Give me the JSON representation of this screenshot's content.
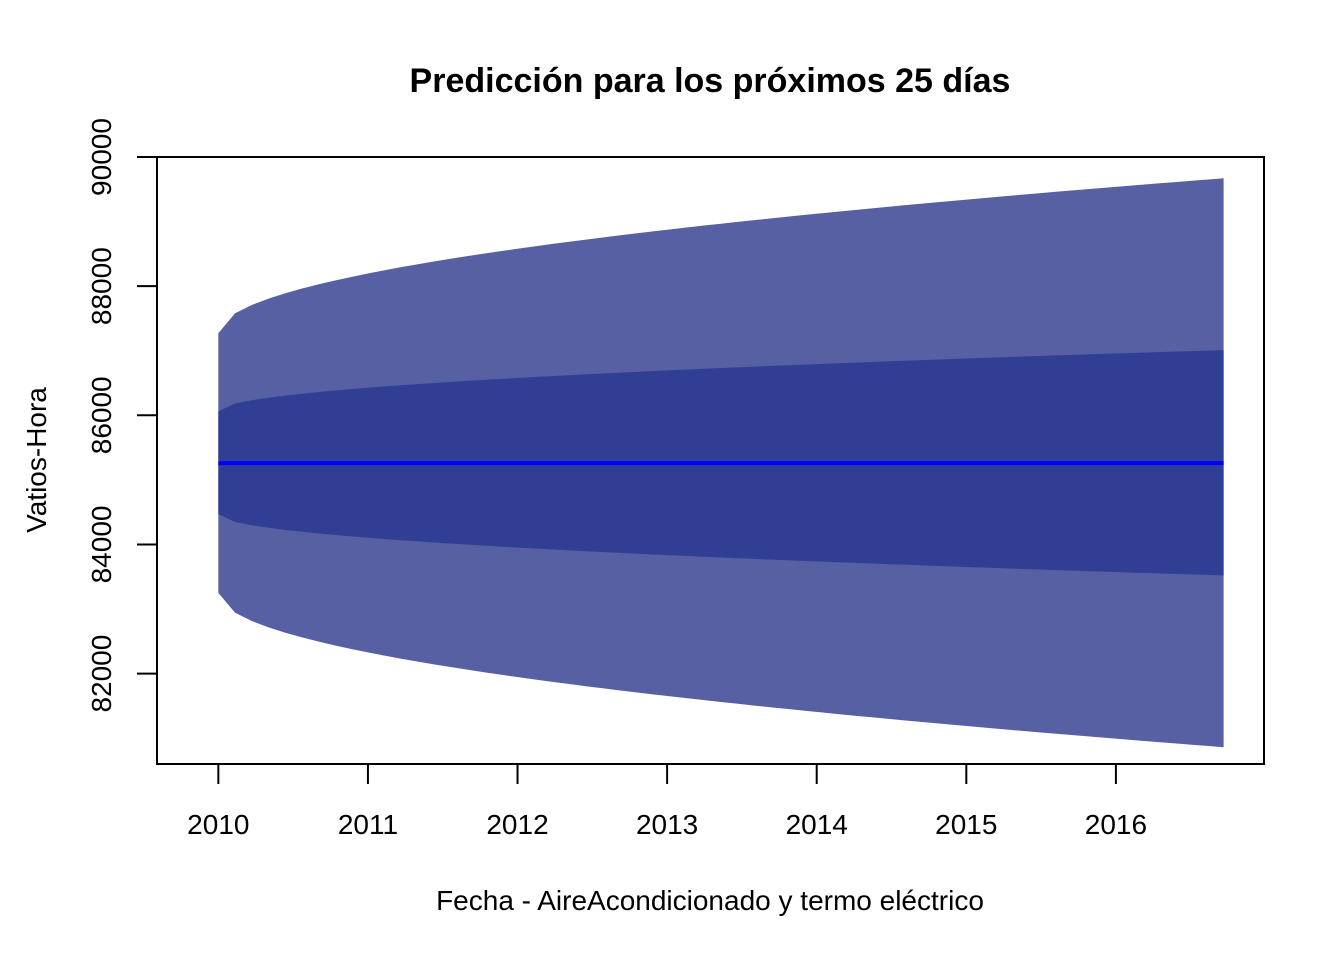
{
  "chart_data": {
    "type": "area",
    "title": "Predicción para los próximos 25 días",
    "xlabel": "Fecha - AireAcondicionado y termo eléctrico",
    "ylabel": "Vatios-Hora",
    "xlim": [
      2009.59,
      2016.99
    ],
    "ylim": [
      80600,
      90000
    ],
    "x_ticks": [
      2010,
      2011,
      2012,
      2013,
      2014,
      2015,
      2016
    ],
    "x_tick_labels": [
      "2010",
      "2011",
      "2012",
      "2013",
      "2014",
      "2015",
      "2016"
    ],
    "y_ticks": [
      82000,
      84000,
      86000,
      88000,
      90000
    ],
    "y_tick_labels": [
      "82000",
      "84000",
      "86000",
      "88000",
      "90000"
    ],
    "x_start": 2010,
    "x_end": 2016.72,
    "point_forecast": 85260,
    "bands": [
      {
        "level": "95",
        "color": "#5760a2",
        "upper_start": 87270,
        "upper_end": 89670,
        "lower_start": 83250,
        "lower_end": 80860
      },
      {
        "level": "80",
        "color": "#303f93",
        "upper_start": 86060,
        "upper_end": 87010,
        "lower_start": 84470,
        "lower_end": 83520
      }
    ],
    "forecast_color": "#0000ff",
    "grid": false
  }
}
